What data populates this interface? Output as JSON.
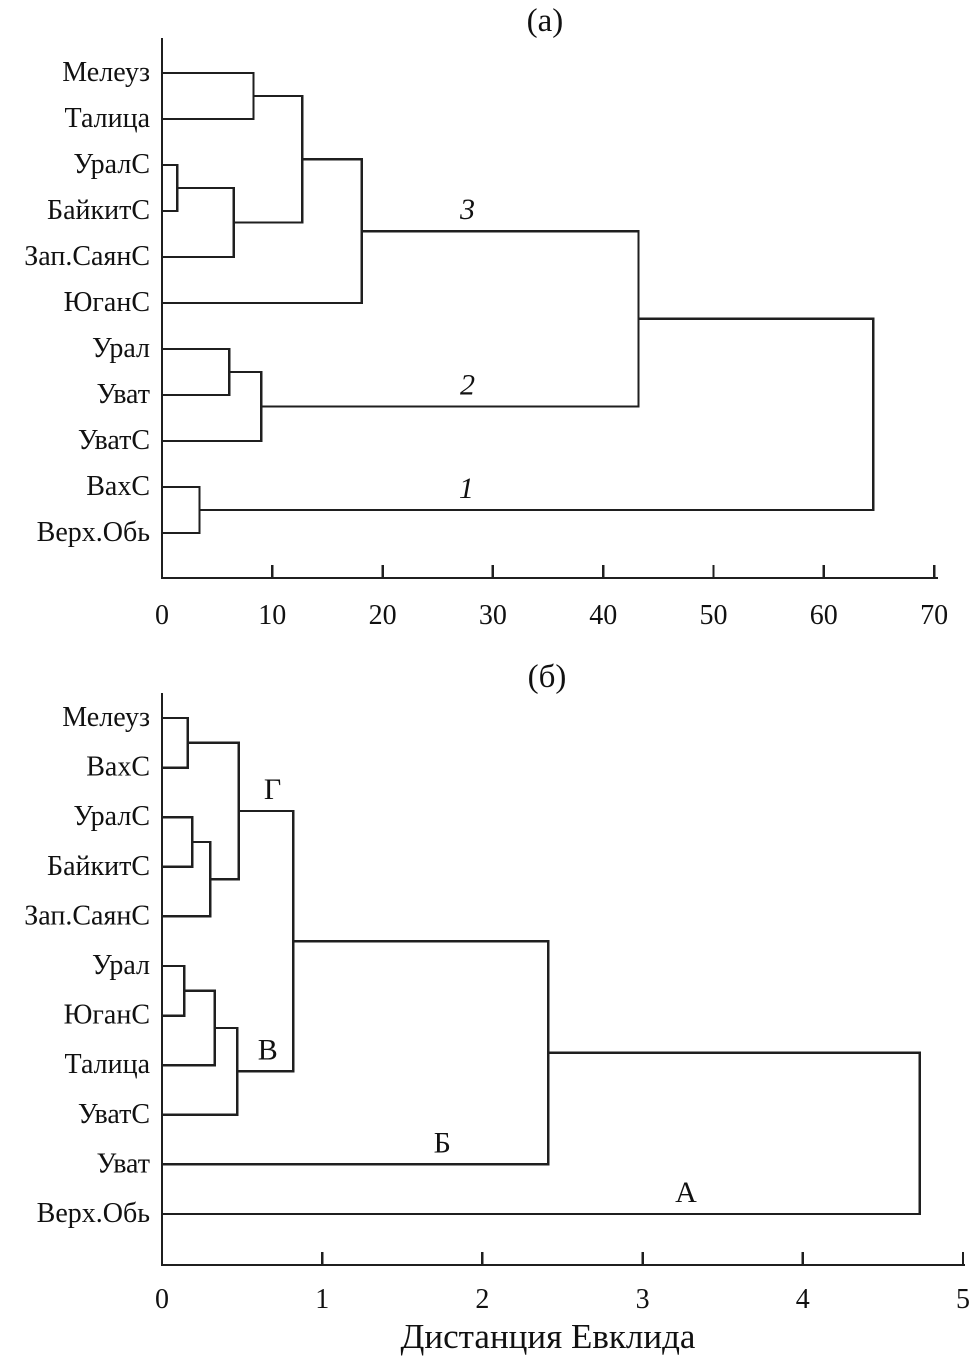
{
  "figure": {
    "x_axis_label": "Дистанция Евклида",
    "line_color": "#1f1f1f",
    "text_color": "#111111",
    "background": "#ffffff"
  },
  "chart_data": [
    {
      "type": "dendrogram",
      "orientation": "horizontal",
      "title": "(а)",
      "xlabel": "",
      "xlim": [
        0,
        70
      ],
      "x_ticks": [
        0,
        10,
        20,
        30,
        40,
        50,
        60,
        70
      ],
      "grid": false,
      "leaves": [
        "Мелеуз",
        "Талица",
        "УралС",
        "БайкитС",
        "Зап.СаянС",
        "ЮганС",
        "Урал",
        "Уват",
        "УватС",
        "ВахС",
        "Верх.Обь"
      ],
      "merges": [
        {
          "id": "M0",
          "a": "L0",
          "b": "L1",
          "height": 8.3
        },
        {
          "id": "M1",
          "a": "L2",
          "b": "L3",
          "height": 1.4
        },
        {
          "id": "M2",
          "a": "M1",
          "b": "L4",
          "height": 6.5
        },
        {
          "id": "M3",
          "a": "M0",
          "b": "M2",
          "height": 12.7
        },
        {
          "id": "M4",
          "a": "M3",
          "b": "L5",
          "height": 18.1
        },
        {
          "id": "M5",
          "a": "L6",
          "b": "L7",
          "height": 6.1
        },
        {
          "id": "M6",
          "a": "M5",
          "b": "L8",
          "height": 9.0
        },
        {
          "id": "M7",
          "a": "M4",
          "b": "M6",
          "height": 43.2
        },
        {
          "id": "M8",
          "a": "L9",
          "b": "L10",
          "height": 3.4
        },
        {
          "id": "M9",
          "a": "M7",
          "b": "M8",
          "height": 64.5
        }
      ],
      "cluster_labels": [
        {
          "text": "3",
          "x": 27.7,
          "above": "M4",
          "italic": true
        },
        {
          "text": "2",
          "x": 27.7,
          "above": "M6",
          "italic": true
        },
        {
          "text": "1",
          "x": 27.6,
          "above": "M8",
          "italic": true
        }
      ]
    },
    {
      "type": "dendrogram",
      "orientation": "horizontal",
      "title": "(б)",
      "xlabel": "Дистанция Евклида",
      "xlim": [
        0,
        5
      ],
      "x_ticks": [
        0,
        1,
        2,
        3,
        4,
        5
      ],
      "grid": false,
      "leaves": [
        "Мелеуз",
        "ВахС",
        "УралС",
        "БайкитС",
        "Зап.СаянС",
        "Урал",
        "ЮганС",
        "Талица",
        "УватС",
        "Уват",
        "Верх.Обь"
      ],
      "merges": [
        {
          "id": "M0",
          "a": "L0",
          "b": "L1",
          "height": 0.16
        },
        {
          "id": "M1",
          "a": "L2",
          "b": "L3",
          "height": 0.19
        },
        {
          "id": "M2",
          "a": "M1",
          "b": "L4",
          "height": 0.3
        },
        {
          "id": "M3",
          "a": "M0",
          "b": "M2",
          "height": 0.48
        },
        {
          "id": "M4",
          "a": "L5",
          "b": "L6",
          "height": 0.14
        },
        {
          "id": "M5",
          "a": "M4",
          "b": "L7",
          "height": 0.33
        },
        {
          "id": "M6",
          "a": "M5",
          "b": "L8",
          "height": 0.47
        },
        {
          "id": "M7",
          "a": "M3",
          "b": "M6",
          "height": 0.82
        },
        {
          "id": "M8",
          "a": "M7",
          "b": "L9",
          "height": 2.41
        },
        {
          "id": "M9",
          "a": "M8",
          "b": "L10",
          "height": 4.73
        }
      ],
      "cluster_labels": [
        {
          "text": "Г",
          "x": 0.69,
          "above": "M3",
          "italic": false
        },
        {
          "text": "В",
          "x": 0.66,
          "above": "M6",
          "italic": false
        },
        {
          "text": "Б",
          "x": 1.75,
          "above": "L9",
          "italic": false
        },
        {
          "text": "А",
          "x": 3.27,
          "above": "L10",
          "italic": false
        }
      ]
    }
  ]
}
